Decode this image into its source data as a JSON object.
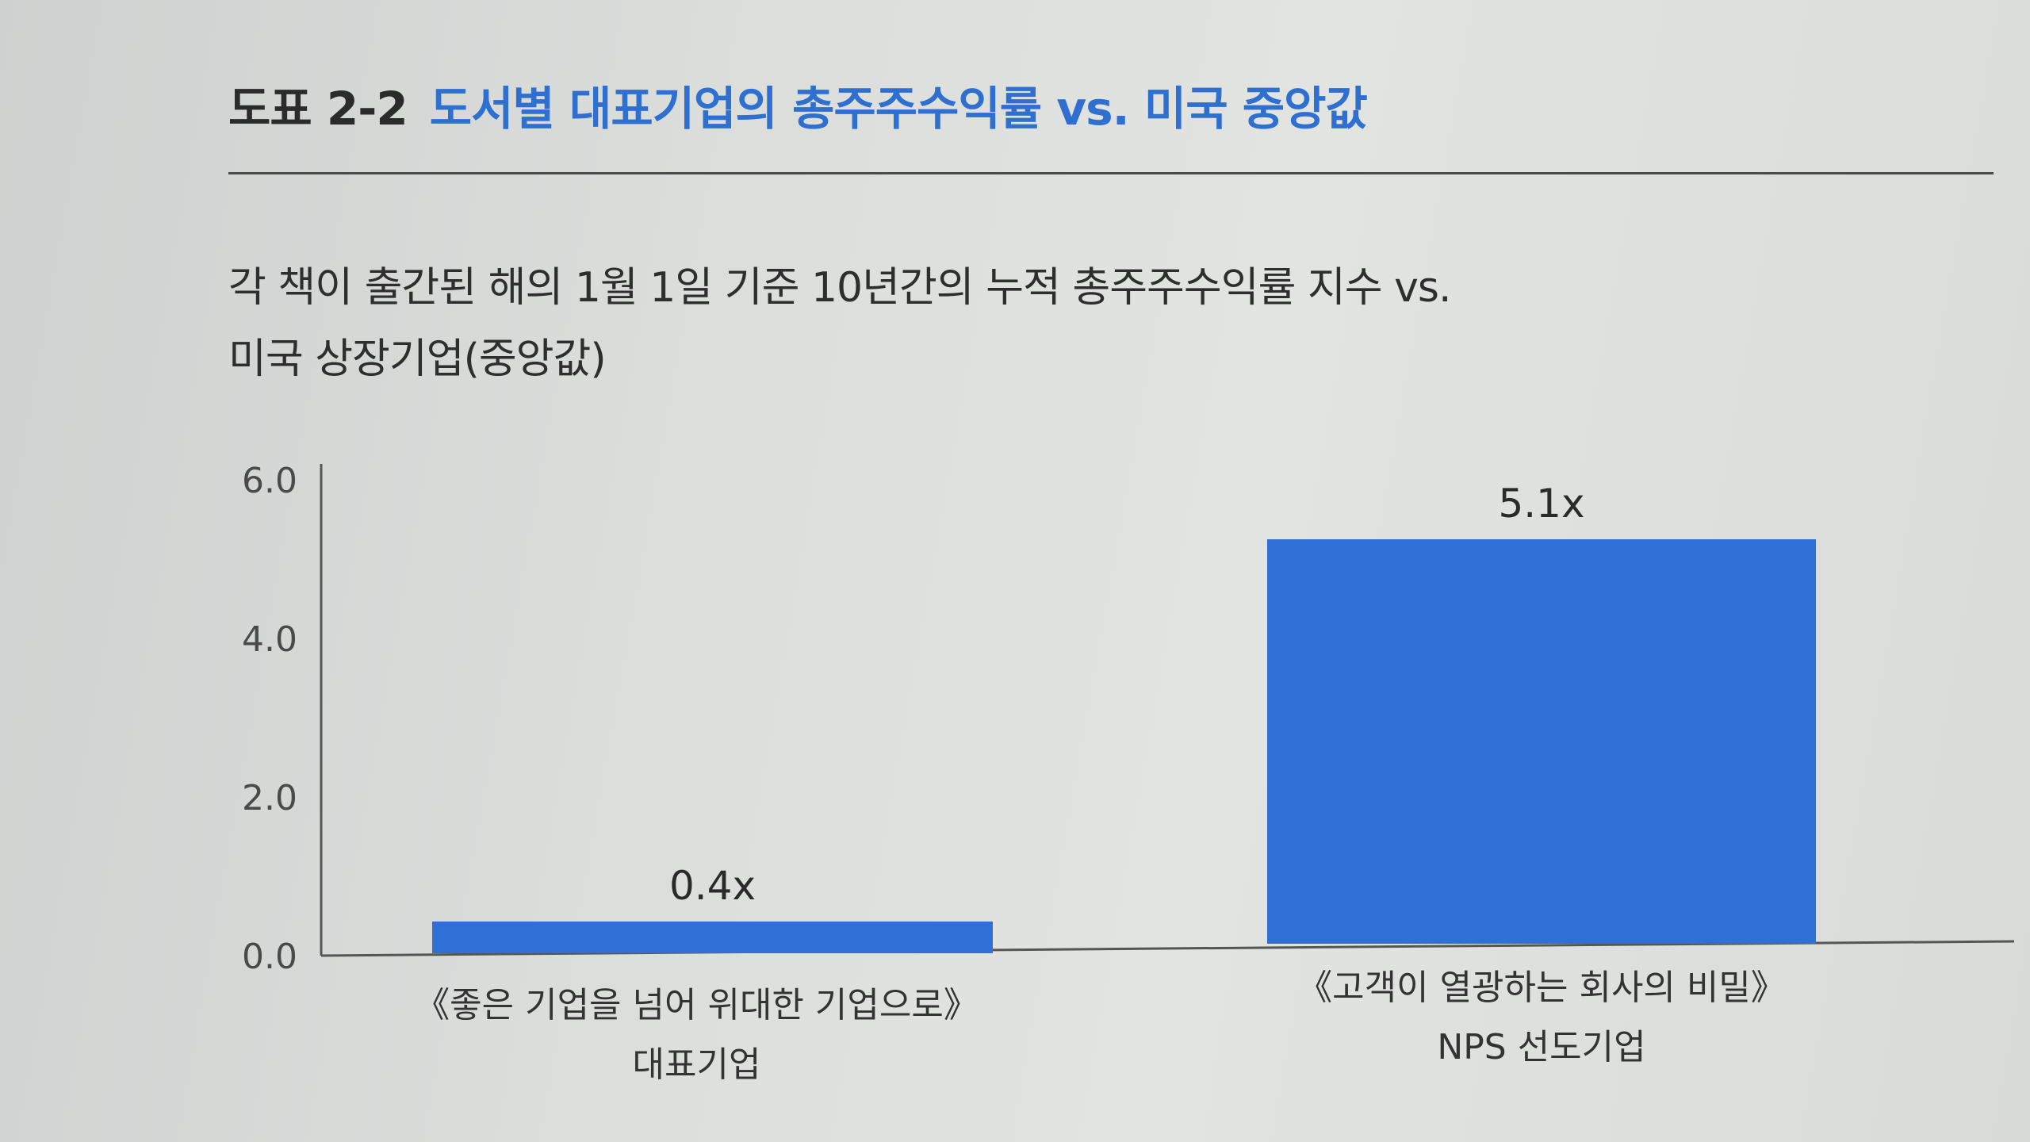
{
  "header": {
    "figure_number": "도표 2-2",
    "title": "도서별 대표기업의 총주주수익률 vs. 미국 중앙값"
  },
  "subtitle": {
    "line1": "각 책이 출간된 해의 1월 1일 기준 10년간의 누적 총주주수익률 지수 vs.",
    "line2": "미국 상장기업(중앙값)"
  },
  "chart_data": {
    "type": "bar",
    "categories": [
      [
        "《좋은 기업을 넘어 위대한 기업으로》",
        "대표기업"
      ],
      [
        "《고객이 열광하는 회사의 비밀》",
        "NPS 선도기업"
      ]
    ],
    "values": [
      0.4,
      5.1
    ],
    "data_labels": [
      "0.4x",
      "5.1x"
    ],
    "y_ticks": [
      "0.0",
      "2.0",
      "4.0",
      "6.0"
    ],
    "ylim": [
      0,
      6
    ],
    "bar_color": "#2f6fd6",
    "grid": false
  }
}
